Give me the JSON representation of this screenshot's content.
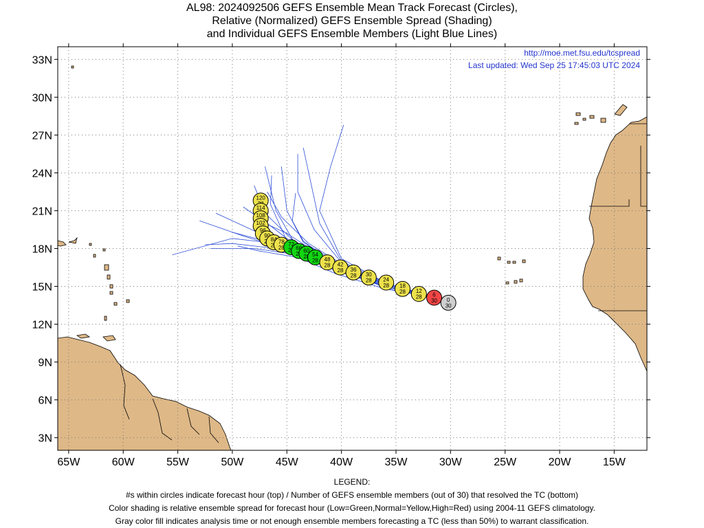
{
  "title": {
    "line1": "AL98: 2024092506 GEFS Ensemble Mean Track Forecast (Circles),",
    "line2": "Relative (Normalized) GEFS Ensemble Spread (Shading)",
    "line3": "and Individual GEFS Ensemble Members (Light Blue Lines)"
  },
  "source": {
    "url": "http://moe.met.fsu.edu/tcspread",
    "updated": "Last updated: Wed Sep 25 17:45:03 UTC 2024"
  },
  "axes": {
    "lat_labels": [
      "3N",
      "6N",
      "9N",
      "12N",
      "15N",
      "18N",
      "21N",
      "24N",
      "27N",
      "30N",
      "33N"
    ],
    "lat_values": [
      3,
      6,
      9,
      12,
      15,
      18,
      21,
      24,
      27,
      30,
      33
    ],
    "lon_labels": [
      "65W",
      "60W",
      "55W",
      "50W",
      "45W",
      "40W",
      "35W",
      "30W",
      "25W",
      "20W",
      "15W"
    ],
    "lon_values": [
      -65,
      -60,
      -55,
      -50,
      -45,
      -40,
      -35,
      -30,
      -25,
      -20,
      -15
    ],
    "lon_range": [
      -66,
      -12
    ],
    "lat_range": [
      2,
      34
    ]
  },
  "colors": {
    "land": "#deb887",
    "coast": "#000000",
    "member_line": "#2b4cd8",
    "green": "#12d612",
    "yellow": "#ede24b",
    "red": "#f24545",
    "gray": "#cfcfcf",
    "source_text": "#2233cc"
  },
  "track": [
    {
      "hour": "0",
      "members": "30",
      "lon": -30.2,
      "lat": 13.7,
      "color": "gray"
    },
    {
      "hour": "6",
      "members": "30",
      "lon": -31.5,
      "lat": 14.1,
      "color": "red"
    },
    {
      "hour": "12",
      "members": "28",
      "lon": -32.9,
      "lat": 14.4,
      "color": "yellow"
    },
    {
      "hour": "18",
      "members": "28",
      "lon": -34.4,
      "lat": 14.8,
      "color": "yellow"
    },
    {
      "hour": "24",
      "members": "28",
      "lon": -35.9,
      "lat": 15.3,
      "color": "yellow"
    },
    {
      "hour": "30",
      "members": "28",
      "lon": -37.5,
      "lat": 15.7,
      "color": "yellow"
    },
    {
      "hour": "36",
      "members": "28",
      "lon": -38.9,
      "lat": 16.1,
      "color": "yellow"
    },
    {
      "hour": "42",
      "members": "28",
      "lon": -40.1,
      "lat": 16.5,
      "color": "yellow"
    },
    {
      "hour": "48",
      "members": "28",
      "lon": -41.3,
      "lat": 16.9,
      "color": "yellow"
    },
    {
      "hour": "54",
      "members": "28",
      "lon": -42.4,
      "lat": 17.3,
      "color": "green"
    },
    {
      "hour": "60",
      "members": "28",
      "lon": -43.2,
      "lat": 17.6,
      "color": "green"
    },
    {
      "hour": "66",
      "members": "28",
      "lon": -43.9,
      "lat": 17.8,
      "color": "green"
    },
    {
      "hour": "72",
      "members": "28",
      "lon": -44.6,
      "lat": 18.1,
      "color": "green"
    },
    {
      "hour": "78",
      "members": "28",
      "lon": -45.5,
      "lat": 18.3,
      "color": "yellow"
    },
    {
      "hour": "84",
      "members": "28",
      "lon": -46.2,
      "lat": 18.5,
      "color": "yellow"
    },
    {
      "hour": "90",
      "members": "28",
      "lon": -46.8,
      "lat": 18.8,
      "color": "yellow"
    },
    {
      "hour": "96",
      "members": "28",
      "lon": -47.2,
      "lat": 19.2,
      "color": "yellow"
    },
    {
      "hour": "102",
      "members": "28",
      "lon": -47.4,
      "lat": 19.8,
      "color": "yellow"
    },
    {
      "hour": "108",
      "members": "28",
      "lon": -47.4,
      "lat": 20.4,
      "color": "yellow"
    },
    {
      "hour": "114",
      "members": "28",
      "lon": -47.4,
      "lat": 21.0,
      "color": "yellow"
    },
    {
      "hour": "120",
      "members": "28",
      "lon": -47.4,
      "lat": 21.8,
      "color": "yellow"
    }
  ],
  "members": [
    [
      [
        -31,
        14.0
      ],
      [
        -36,
        15.0
      ],
      [
        -41,
        16.4
      ],
      [
        -45,
        17.9
      ],
      [
        -49,
        19.0
      ],
      [
        -53,
        20.2
      ]
    ],
    [
      [
        -31,
        14.0
      ],
      [
        -36,
        15.1
      ],
      [
        -41,
        16.8
      ],
      [
        -44,
        18.2
      ],
      [
        -48,
        19.4
      ],
      [
        -51.5,
        20.8
      ]
    ],
    [
      [
        -31,
        14.0
      ],
      [
        -36,
        15.2
      ],
      [
        -41,
        17.0
      ],
      [
        -44.5,
        18.7
      ],
      [
        -47,
        20.8
      ],
      [
        -48,
        23.0
      ]
    ],
    [
      [
        -31,
        14.0
      ],
      [
        -36,
        15.0
      ],
      [
        -41,
        16.6
      ],
      [
        -45,
        18.3
      ],
      [
        -50,
        18.8
      ],
      [
        -55.5,
        17.5
      ]
    ],
    [
      [
        -31,
        14.0
      ],
      [
        -36,
        15.2
      ],
      [
        -40,
        16.7
      ],
      [
        -43.5,
        18.5
      ],
      [
        -45,
        21.0
      ],
      [
        -45.5,
        24.5
      ]
    ],
    [
      [
        -31,
        14.0
      ],
      [
        -36,
        15.2
      ],
      [
        -40,
        16.9
      ],
      [
        -42.5,
        19.5
      ],
      [
        -44,
        22.5
      ],
      [
        -44,
        25.5
      ]
    ],
    [
      [
        -31,
        14.0
      ],
      [
        -36,
        15.3
      ],
      [
        -40,
        17.0
      ],
      [
        -42,
        20.0
      ],
      [
        -43,
        24.0
      ],
      [
        -43.5,
        26.0
      ]
    ],
    [
      [
        -31,
        14.0
      ],
      [
        -36,
        15.3
      ],
      [
        -40,
        17.2
      ],
      [
        -42,
        21.0
      ],
      [
        -41,
        24.5
      ],
      [
        -39.8,
        27.8
      ]
    ],
    [
      [
        -31,
        14.0
      ],
      [
        -36,
        15.0
      ],
      [
        -40,
        16.5
      ],
      [
        -43.5,
        17.7
      ],
      [
        -47,
        18.6
      ],
      [
        -50,
        19.3
      ]
    ],
    [
      [
        -31,
        14.0
      ],
      [
        -36,
        14.9
      ],
      [
        -40,
        16.3
      ],
      [
        -44,
        17.5
      ],
      [
        -48,
        18.0
      ],
      [
        -52,
        18.0
      ]
    ],
    [
      [
        -31,
        14.0
      ],
      [
        -36,
        15.1
      ],
      [
        -40,
        16.6
      ],
      [
        -43.8,
        18.0
      ],
      [
        -46.5,
        19.8
      ],
      [
        -49,
        21.3
      ]
    ],
    [
      [
        -31,
        14.0
      ],
      [
        -36,
        15.2
      ],
      [
        -40.5,
        16.9
      ],
      [
        -44.2,
        18.3
      ],
      [
        -46,
        21.0
      ],
      [
        -47,
        24.5
      ]
    ],
    [
      [
        -31,
        14.0
      ],
      [
        -36,
        15.1
      ],
      [
        -41,
        16.9
      ],
      [
        -45,
        18.6
      ],
      [
        -46.5,
        21.5
      ],
      [
        -46.4,
        23.8
      ]
    ],
    [
      [
        -31,
        14.0
      ],
      [
        -36,
        14.8
      ],
      [
        -40.5,
        16.0
      ],
      [
        -44,
        17.3
      ],
      [
        -47.5,
        17.8
      ],
      [
        -49.5,
        18.2
      ]
    ],
    [
      [
        -31,
        14.0
      ],
      [
        -36,
        15.0
      ],
      [
        -40.5,
        16.6
      ],
      [
        -43.5,
        18.6
      ],
      [
        -44.5,
        20.2
      ],
      [
        -44.2,
        22.4
      ]
    ],
    [
      [
        -31,
        14.0
      ],
      [
        -35.5,
        15.0
      ],
      [
        -39.5,
        16.4
      ],
      [
        -42.5,
        17.8
      ],
      [
        -45,
        19.2
      ],
      [
        -47.5,
        20.2
      ]
    ],
    [
      [
        -31,
        14.0
      ],
      [
        -36,
        15.3
      ],
      [
        -40,
        16.8
      ],
      [
        -43,
        18.4
      ],
      [
        -45.5,
        20.5
      ],
      [
        -46.8,
        22.5
      ]
    ],
    [
      [
        -31,
        14.0
      ],
      [
        -36,
        15.0
      ],
      [
        -41,
        16.5
      ],
      [
        -46,
        18.0
      ],
      [
        -50,
        18.4
      ],
      [
        -52.5,
        18.3
      ]
    ]
  ],
  "legend": {
    "header": "LEGEND:",
    "line1": "#s within circles indicate forecast hour (top) / Number of GEFS ensemble members (out of 30) that resolved the TC (bottom)",
    "line2": "Color shading is relative ensemble spread for forecast hour (Low=Green,Normal=Yellow,High=Red) using 2004-11 GEFS climatology.",
    "line3": "Gray color fill indicates analysis time or not enough ensemble members forecasting a TC (less than 50%) to warrant classification."
  }
}
